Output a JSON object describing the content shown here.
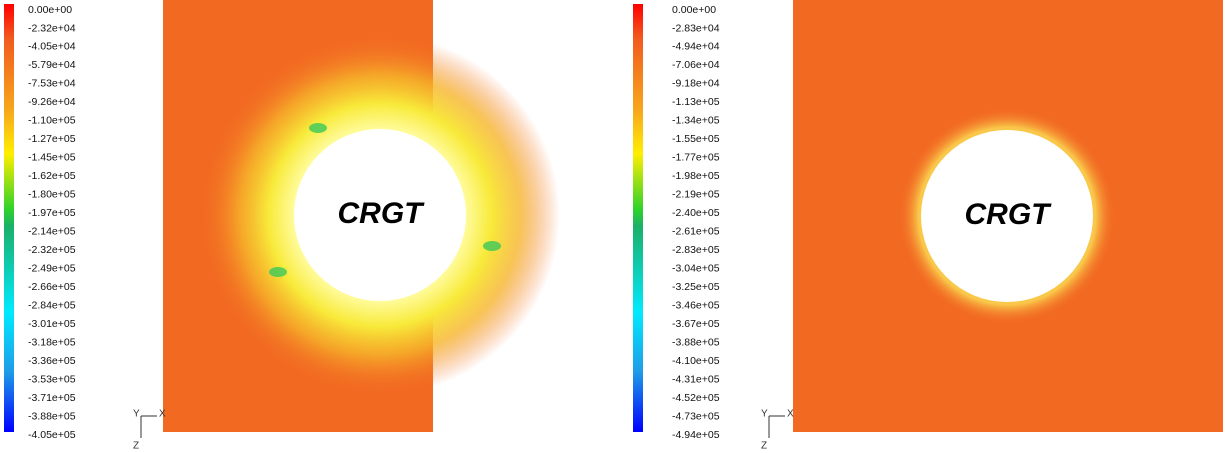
{
  "panels": [
    {
      "colorbar": {
        "labels": [
          "0.00e+00",
          "-2.32e+04",
          "-4.05e+04",
          "-5.79e+04",
          "-7.53e+04",
          "-9.26e+04",
          "-1.10e+05",
          "-1.27e+05",
          "-1.45e+05",
          "-1.62e+05",
          "-1.80e+05",
          "-1.97e+05",
          "-2.14e+05",
          "-2.32e+05",
          "-2.49e+05",
          "-2.66e+05",
          "-2.84e+05",
          "-3.01e+05",
          "-3.18e+05",
          "-3.36e+05",
          "-3.53e+05",
          "-3.71e+05",
          "-3.88e+05",
          "-4.05e+05"
        ]
      },
      "center_label": "CRGT",
      "triad": {
        "y": "Y",
        "x": "X",
        "z": "Z"
      }
    },
    {
      "colorbar": {
        "labels": [
          "0.00e+00",
          "-2.83e+04",
          "-4.94e+04",
          "-7.06e+04",
          "-9.18e+04",
          "-1.13e+05",
          "-1.34e+05",
          "-1.55e+05",
          "-1.77e+05",
          "-1.98e+05",
          "-2.19e+05",
          "-2.40e+05",
          "-2.61e+05",
          "-2.83e+05",
          "-3.04e+05",
          "-3.25e+05",
          "-3.46e+05",
          "-3.67e+05",
          "-3.88e+05",
          "-4.10e+05",
          "-4.31e+05",
          "-4.52e+05",
          "-4.73e+05",
          "-4.94e+05"
        ]
      },
      "center_label": "CRGT",
      "triad": {
        "y": "Y",
        "x": "X",
        "z": "Z"
      }
    }
  ]
}
